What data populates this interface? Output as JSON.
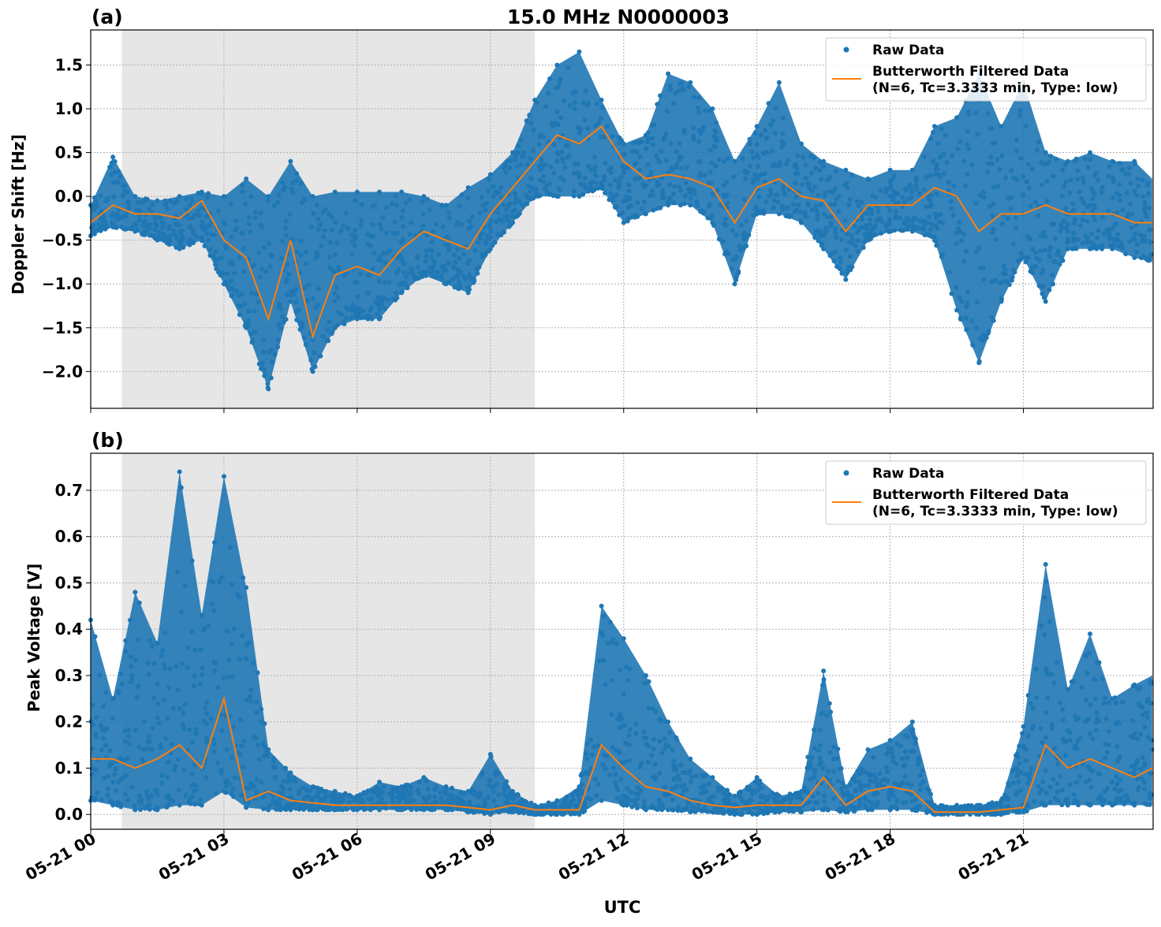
{
  "title": "15.0 MHz N0000003",
  "xlabel": "UTC",
  "xticks": [
    "05-21 00",
    "05-21 03",
    "05-21 06",
    "05-21 09",
    "05-21 12",
    "05-21 15",
    "05-21 18",
    "05-21 21"
  ],
  "xtick_hours": [
    0,
    3,
    6,
    9,
    12,
    15,
    18,
    21
  ],
  "xlim_hours": [
    0,
    23.92
  ],
  "shaded_interval_hours": [
    0.7,
    10.0
  ],
  "colors": {
    "raw": "#1f77b4",
    "filtered": "#ff7f0e",
    "shade": "#e6e6e6",
    "grid": "#b0b0b0"
  },
  "legend": {
    "raw": "Raw Data",
    "filtered_line1": "Butterworth Filtered Data",
    "filtered_line2": "(N=6, Tc=3.3333 min, Type: low)",
    "placement": "top-right"
  },
  "chart_data": [
    {
      "type": "scatter+line",
      "panel_label": "(a)",
      "ylabel": "Doppler Shift [Hz]",
      "ylim": [
        -2.42,
        1.9
      ],
      "yticks": [
        1.5,
        1.0,
        0.5,
        0.0,
        -0.5,
        -1.0,
        -1.5,
        -2.0
      ],
      "ytick_labels": [
        "1.5",
        "1.0",
        "0.5",
        "0.0",
        "−0.5",
        "−1.0",
        "−1.5",
        "−2.0"
      ],
      "grid": true,
      "x": [
        0,
        0.5,
        1,
        1.5,
        2,
        2.5,
        3,
        3.5,
        4,
        4.5,
        5,
        5.5,
        6,
        6.5,
        7,
        7.5,
        8,
        8.5,
        9,
        9.5,
        10,
        10.5,
        11,
        11.5,
        12,
        12.5,
        13,
        13.5,
        14,
        14.5,
        15,
        15.5,
        16,
        16.5,
        17,
        17.5,
        18,
        18.5,
        19,
        19.5,
        20,
        20.5,
        21,
        21.5,
        22,
        22.5,
        23,
        23.5,
        23.9
      ],
      "series": [
        {
          "name": "Butterworth Filtered Data",
          "values": [
            -0.3,
            -0.1,
            -0.2,
            -0.2,
            -0.25,
            -0.05,
            -0.5,
            -0.7,
            -1.4,
            -0.5,
            -1.6,
            -0.9,
            -0.8,
            -0.9,
            -0.6,
            -0.4,
            -0.5,
            -0.6,
            -0.2,
            0.1,
            0.4,
            0.7,
            0.6,
            0.8,
            0.4,
            0.2,
            0.25,
            0.2,
            0.1,
            -0.3,
            0.1,
            0.2,
            0.0,
            -0.05,
            -0.4,
            -0.1,
            -0.1,
            -0.1,
            0.1,
            0.0,
            -0.4,
            -0.2,
            -0.2,
            -0.1,
            -0.2,
            -0.2,
            -0.2,
            -0.3,
            -0.3
          ]
        },
        {
          "name": "Raw Data",
          "low": [
            -0.45,
            -0.35,
            -0.4,
            -0.5,
            -0.6,
            -0.5,
            -1.0,
            -1.5,
            -2.2,
            -1.2,
            -2.0,
            -1.5,
            -1.4,
            -1.4,
            -1.1,
            -0.9,
            -1.0,
            -1.1,
            -0.6,
            -0.3,
            0.0,
            0.0,
            0.0,
            0.1,
            -0.3,
            -0.2,
            -0.1,
            -0.1,
            -0.3,
            -1.0,
            -0.2,
            -0.2,
            -0.3,
            -0.6,
            -0.95,
            -0.5,
            -0.4,
            -0.4,
            -0.5,
            -1.3,
            -1.9,
            -1.2,
            -0.7,
            -1.2,
            -0.6,
            -0.6,
            -0.6,
            -0.7,
            -0.75
          ],
          "high": [
            -0.1,
            0.45,
            0.0,
            -0.05,
            0.0,
            0.05,
            0.0,
            0.2,
            0.0,
            0.4,
            0.0,
            0.05,
            0.05,
            0.05,
            0.05,
            0.0,
            -0.1,
            0.1,
            0.25,
            0.5,
            1.1,
            1.5,
            1.65,
            1.1,
            0.6,
            0.7,
            1.4,
            1.3,
            1.0,
            0.4,
            0.8,
            1.3,
            0.6,
            0.4,
            0.3,
            0.2,
            0.3,
            0.3,
            0.8,
            0.9,
            1.4,
            0.8,
            1.3,
            0.5,
            0.4,
            0.5,
            0.4,
            0.4,
            0.2
          ]
        }
      ]
    },
    {
      "type": "scatter+line",
      "panel_label": "(b)",
      "ylabel": "Peak Voltage [V]",
      "ylim": [
        -0.032,
        0.78
      ],
      "yticks": [
        0.7,
        0.6,
        0.5,
        0.4,
        0.3,
        0.2,
        0.1,
        0.0
      ],
      "ytick_labels": [
        "0.7",
        "0.6",
        "0.5",
        "0.4",
        "0.3",
        "0.2",
        "0.1",
        "0.0"
      ],
      "grid": true,
      "x": [
        0,
        0.5,
        1,
        1.5,
        2,
        2.5,
        3,
        3.5,
        4,
        4.5,
        5,
        5.5,
        6,
        6.5,
        7,
        7.5,
        8,
        8.5,
        9,
        9.5,
        10,
        10.5,
        11,
        11.5,
        12,
        12.5,
        13,
        13.5,
        14,
        14.5,
        15,
        15.5,
        16,
        16.5,
        17,
        17.5,
        18,
        18.5,
        19,
        19.5,
        20,
        20.5,
        21,
        21.5,
        22,
        22.5,
        23,
        23.5,
        23.9
      ],
      "series": [
        {
          "name": "Butterworth Filtered Data",
          "values": [
            0.12,
            0.12,
            0.1,
            0.12,
            0.15,
            0.1,
            0.25,
            0.03,
            0.05,
            0.03,
            0.025,
            0.02,
            0.02,
            0.02,
            0.02,
            0.02,
            0.02,
            0.015,
            0.01,
            0.02,
            0.01,
            0.01,
            0.01,
            0.15,
            0.1,
            0.06,
            0.05,
            0.03,
            0.02,
            0.015,
            0.02,
            0.02,
            0.02,
            0.08,
            0.02,
            0.05,
            0.06,
            0.05,
            0.005,
            0.005,
            0.005,
            0.01,
            0.015,
            0.15,
            0.1,
            0.12,
            0.1,
            0.08,
            0.1
          ]
        },
        {
          "name": "Raw Data",
          "low": [
            0.03,
            0.02,
            0.01,
            0.01,
            0.02,
            0.02,
            0.05,
            0.015,
            0.01,
            0.01,
            0.01,
            0.01,
            0.01,
            0.01,
            0.01,
            0.01,
            0.01,
            0.005,
            0.0,
            0.005,
            0.0,
            0.0,
            0.0,
            0.03,
            0.02,
            0.01,
            0.01,
            0.005,
            0.005,
            0.0,
            0.0,
            0.005,
            0.005,
            0.01,
            0.005,
            0.01,
            0.01,
            0.01,
            0.0,
            0.0,
            0.0,
            0.0,
            0.005,
            0.02,
            0.02,
            0.02,
            0.02,
            0.02,
            0.02
          ],
          "high": [
            0.42,
            0.25,
            0.48,
            0.37,
            0.74,
            0.43,
            0.73,
            0.49,
            0.14,
            0.09,
            0.06,
            0.05,
            0.04,
            0.07,
            0.06,
            0.08,
            0.06,
            0.05,
            0.13,
            0.05,
            0.02,
            0.03,
            0.06,
            0.45,
            0.38,
            0.3,
            0.2,
            0.12,
            0.08,
            0.04,
            0.08,
            0.04,
            0.05,
            0.31,
            0.06,
            0.14,
            0.16,
            0.2,
            0.02,
            0.02,
            0.02,
            0.03,
            0.19,
            0.54,
            0.27,
            0.39,
            0.25,
            0.28,
            0.3
          ]
        }
      ]
    }
  ]
}
